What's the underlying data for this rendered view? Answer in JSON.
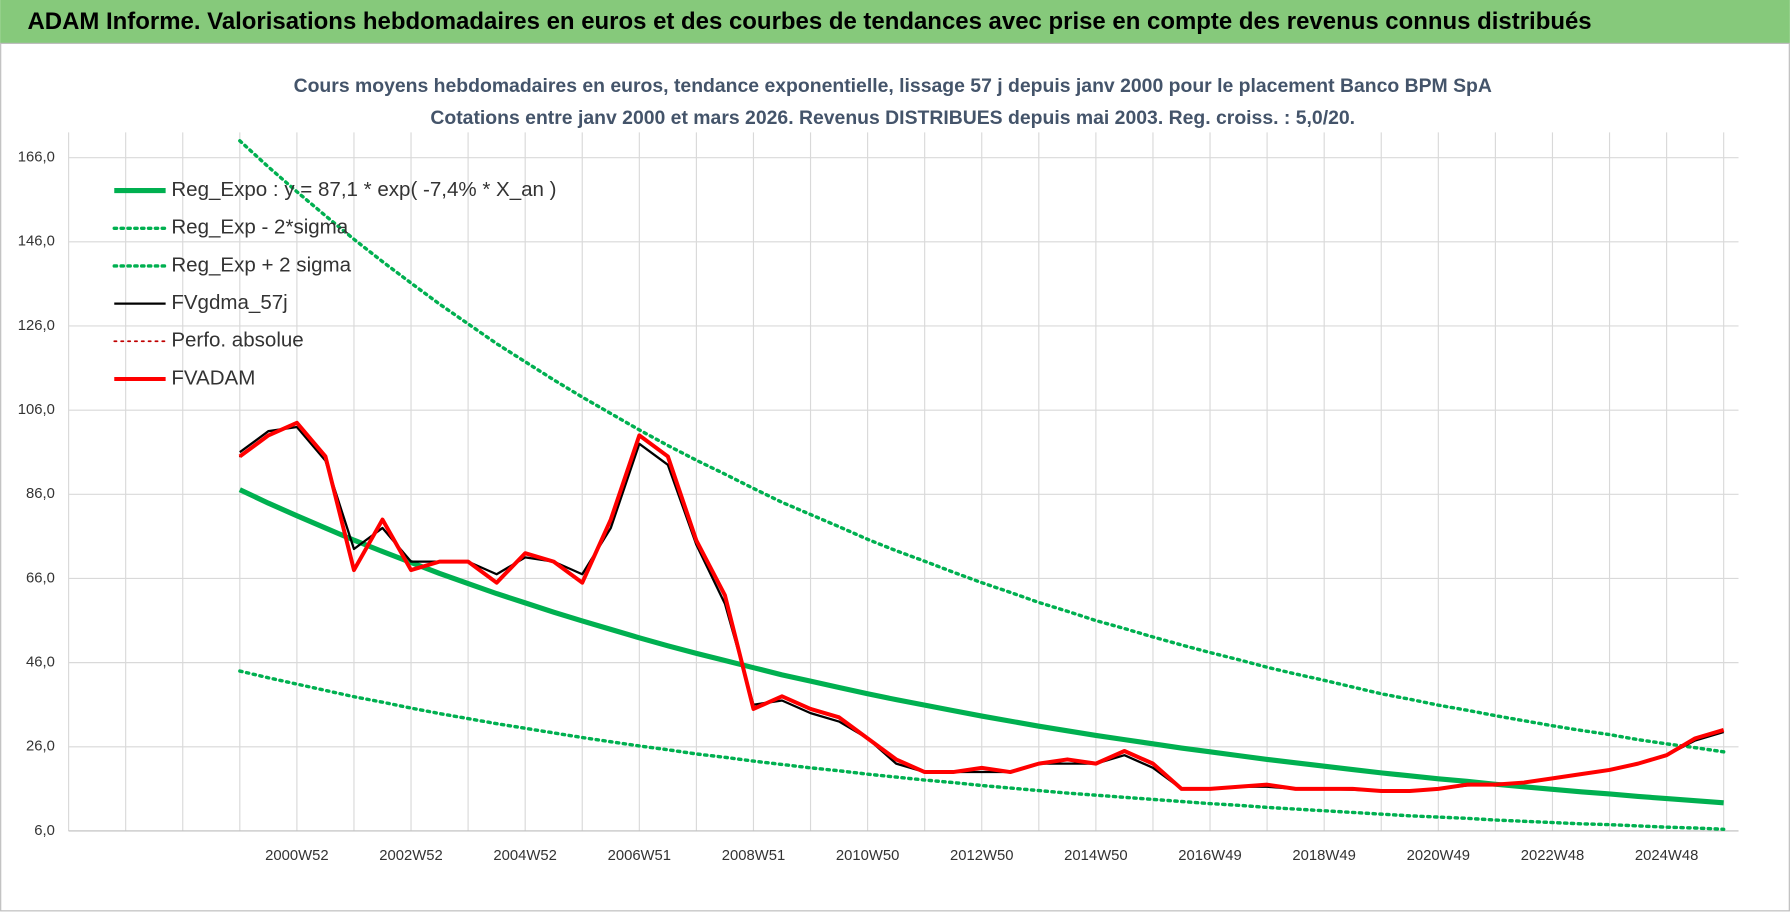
{
  "header": {
    "title": "ADAM Informe. Valorisations hebdomadaires en euros et des courbes de tendances avec prise en compte des revenus connus distribués"
  },
  "chart_data": {
    "type": "line",
    "title": [
      "Cours moyens hebdomadaires en euros, tendance exponentielle, lissage 57 j depuis janv 2000  pour le placement Banco BPM SpA",
      "Cotations entre janv 2000 et mars 2026. Revenus DISTRIBUES depuis mai 2003. Reg. croiss. : 5,0/20."
    ],
    "categories": [
      null,
      null,
      null,
      null,
      null,
      null,
      null,
      null,
      "2000W52",
      null,
      null,
      null,
      "2002W52",
      null,
      null,
      null,
      "2004W52",
      null,
      null,
      null,
      "2006W51",
      null,
      null,
      null,
      "2008W51",
      null,
      null,
      null,
      "2010W50",
      null,
      null,
      null,
      "2012W50",
      null,
      null,
      null,
      "2014W50",
      null,
      null,
      null,
      "2016W49",
      null,
      null,
      null,
      "2018W49",
      null,
      null,
      null,
      "2020W49",
      null,
      null,
      null,
      "2022W48",
      null,
      null,
      null,
      "2024W48",
      null,
      null
    ],
    "ylim": [
      6,
      172
    ],
    "yticks": [
      {
        "value": 6,
        "label": "6,0"
      },
      {
        "value": 26,
        "label": "26,0"
      },
      {
        "value": 46,
        "label": "46,0"
      },
      {
        "value": 66,
        "label": "66,0"
      },
      {
        "value": 86,
        "label": "86,0"
      },
      {
        "value": 106,
        "label": "106,0"
      },
      {
        "value": 126,
        "label": "126,0"
      },
      {
        "value": 146,
        "label": "146,0"
      },
      {
        "value": 166,
        "label": "166,0"
      }
    ],
    "grid": true,
    "legend": "upper left",
    "series": [
      {
        "name": "Reg_Expo : y = 87,1 * exp( -7,4% *  X_an )",
        "color": "#00b050",
        "style": "solid",
        "values": [
          null,
          null,
          null,
          null,
          null,
          null,
          87.1,
          83.9,
          80.9,
          78.0,
          75.1,
          72.4,
          69.8,
          67.2,
          64.8,
          62.4,
          60.2,
          58.0,
          55.9,
          53.9,
          51.9,
          50.0,
          48.2,
          46.5,
          44.8,
          43.1,
          41.6,
          40.1,
          38.6,
          37.2,
          35.9,
          34.6,
          33.3,
          32.1,
          30.9,
          29.8,
          28.7,
          27.7,
          26.7,
          25.7,
          24.8,
          23.9,
          23.0,
          22.2,
          21.4,
          20.6,
          19.8,
          19.1,
          18.4,
          17.8,
          17.1,
          16.5,
          15.9,
          15.3,
          14.8,
          14.2,
          13.7,
          13.2,
          12.7
        ]
      },
      {
        "name": "Reg_Exp - 2*sigma",
        "color": "#00b050",
        "style": "dotted",
        "values": [
          null,
          null,
          null,
          null,
          null,
          null,
          170.0,
          163.8,
          157.9,
          152.2,
          146.6,
          141.3,
          136.2,
          131.2,
          126.5,
          121.8,
          117.5,
          113.2,
          109.1,
          105.2,
          101.3,
          97.6,
          94.1,
          90.8,
          87.4,
          84.1,
          81.2,
          78.3,
          75.3,
          72.6,
          70.1,
          67.5,
          65.0,
          62.7,
          60.3,
          58.2,
          56.0,
          54.1,
          52.1,
          50.2,
          48.4,
          46.7,
          44.9,
          43.3,
          41.8,
          40.2,
          38.6,
          37.3,
          35.9,
          34.7,
          33.4,
          32.2,
          31.0,
          29.9,
          28.9,
          27.7,
          26.7,
          25.8,
          24.8
        ]
      },
      {
        "name": "Reg_Exp + 2 sigma",
        "color": "#00b050",
        "style": "dotted",
        "values": [
          null,
          null,
          null,
          null,
          null,
          null,
          44.0,
          42.4,
          40.9,
          39.4,
          37.9,
          36.6,
          35.2,
          33.9,
          32.7,
          31.5,
          30.4,
          29.3,
          28.2,
          27.2,
          26.2,
          25.3,
          24.3,
          23.5,
          22.6,
          21.8,
          21.0,
          20.3,
          19.5,
          18.8,
          18.1,
          17.5,
          16.8,
          16.2,
          15.6,
          15.0,
          14.5,
          14.0,
          13.5,
          13.0,
          12.5,
          12.1,
          11.6,
          11.2,
          10.8,
          10.4,
          10.0,
          9.6,
          9.3,
          9.0,
          8.6,
          8.3,
          8.0,
          7.7,
          7.5,
          7.2,
          6.9,
          6.7,
          6.4
        ]
      },
      {
        "name": "FVgdma_57j",
        "color": "#000000",
        "style": "solid",
        "values": [
          null,
          null,
          null,
          null,
          null,
          null,
          96,
          101,
          102,
          94,
          73,
          78,
          70,
          70,
          70,
          67,
          71,
          70,
          67,
          78,
          98,
          93,
          74,
          60,
          36,
          37,
          34,
          32,
          28,
          22,
          20,
          20,
          20,
          20,
          22,
          22,
          22,
          24,
          21,
          16,
          16,
          16.5,
          16.5,
          16,
          16,
          15.8,
          15.5,
          15.5,
          16,
          16.8,
          17,
          17.5,
          18.5,
          19.5,
          20.5,
          22,
          24,
          27.5,
          29.5
        ]
      },
      {
        "name": "Perfo. absolue",
        "color": "#c00000",
        "style": "dotted",
        "values": [
          null,
          null,
          null,
          null,
          null,
          null,
          95,
          100,
          103,
          95,
          68,
          80,
          68,
          70,
          70,
          65,
          72,
          70,
          65,
          80,
          100,
          95,
          75,
          62,
          35,
          38,
          35,
          33,
          28,
          23,
          20,
          20,
          21,
          20,
          22,
          23,
          22,
          25,
          22,
          16,
          16,
          16.5,
          17,
          16,
          16,
          16,
          15.5,
          15.5,
          16,
          17,
          17,
          17.5,
          18.5,
          19.5,
          20.5,
          22,
          24,
          28,
          30
        ]
      },
      {
        "name": "FVADAM",
        "color": "#ff0000",
        "style": "solid",
        "values": [
          null,
          null,
          null,
          null,
          null,
          null,
          95,
          100,
          103,
          95,
          68,
          80,
          68,
          70,
          70,
          65,
          72,
          70,
          65,
          80,
          100,
          95,
          75,
          62,
          35,
          38,
          35,
          33,
          28,
          23,
          20,
          20,
          21,
          20,
          22,
          23,
          22,
          25,
          22,
          16,
          16,
          16.5,
          17,
          16,
          16,
          16,
          15.5,
          15.5,
          16,
          17,
          17,
          17.5,
          18.5,
          19.5,
          20.5,
          22,
          24,
          28,
          30
        ]
      }
    ]
  }
}
